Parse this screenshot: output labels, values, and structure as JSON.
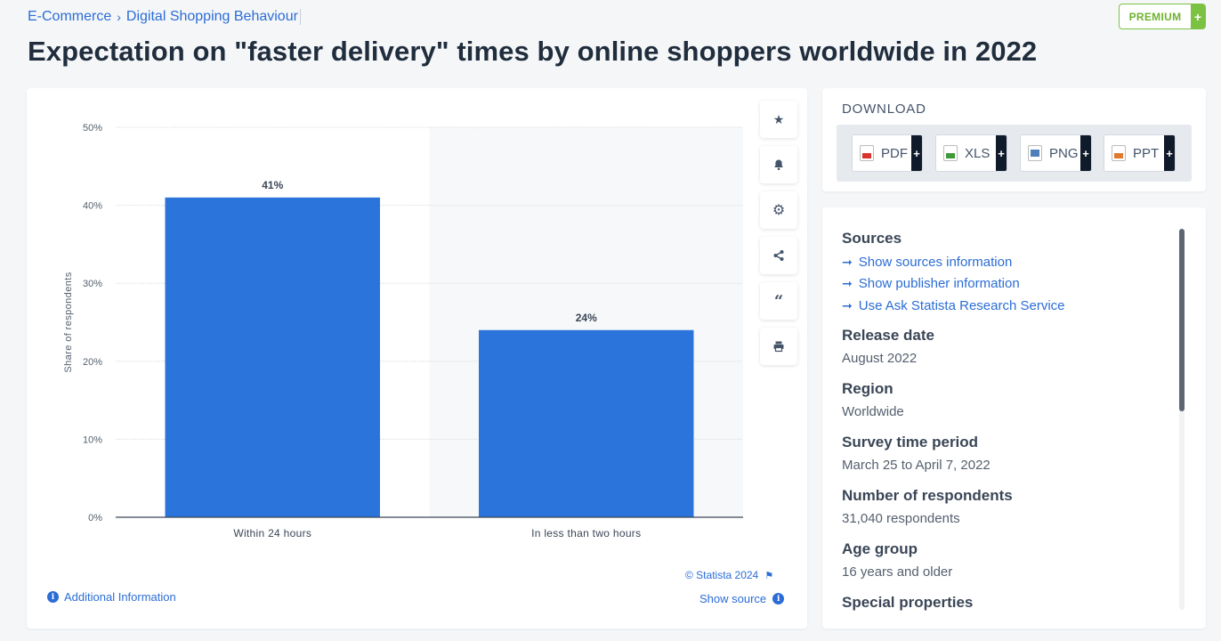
{
  "breadcrumb": {
    "items": [
      "E-Commerce",
      "Digital Shopping Behaviour"
    ],
    "separator": "›"
  },
  "premium": {
    "label": "PREMIUM",
    "plus": "+"
  },
  "page_title": "Expectation on \"faster delivery\" times by online shoppers worldwide in 2022",
  "chart_data": {
    "type": "bar",
    "categories": [
      "Within 24 hours",
      "In less than two hours"
    ],
    "values": [
      41,
      24
    ],
    "value_labels": [
      "41%",
      "24%"
    ],
    "title": "",
    "xlabel": "",
    "ylabel": "Share of respondents",
    "ylim": [
      0,
      50
    ],
    "yticks": [
      0,
      10,
      20,
      30,
      40,
      50
    ],
    "ytick_labels": [
      "0%",
      "10%",
      "20%",
      "30%",
      "40%",
      "50%"
    ],
    "grid": true,
    "bar_color": "#2a74db"
  },
  "tools": [
    "star-icon",
    "bell-icon",
    "gear-icon",
    "share-icon",
    "quote-icon",
    "print-icon"
  ],
  "chart_footer": {
    "additional_info": "Additional Information",
    "copyright": "© Statista 2024",
    "show_source": "Show source"
  },
  "download": {
    "title": "DOWNLOAD",
    "buttons": [
      {
        "label": "PDF",
        "color": "#d9342b"
      },
      {
        "label": "XLS",
        "color": "#3f9a3a"
      },
      {
        "label": "PNG",
        "color": "#4f7fb8"
      },
      {
        "label": "PPT",
        "color": "#e07a2e"
      }
    ]
  },
  "info": {
    "sources_title": "Sources",
    "links": [
      "Show sources information",
      "Show publisher information",
      "Use Ask Statista Research Service"
    ],
    "release_date_title": "Release date",
    "release_date": "August 2022",
    "region_title": "Region",
    "region": "Worldwide",
    "survey_period_title": "Survey time period",
    "survey_period": "March 25 to April 7, 2022",
    "respondents_title": "Number of respondents",
    "respondents": "31,040 respondents",
    "age_group_title": "Age group",
    "age_group": "16 years and older",
    "next_title_partial": "Special properties"
  }
}
